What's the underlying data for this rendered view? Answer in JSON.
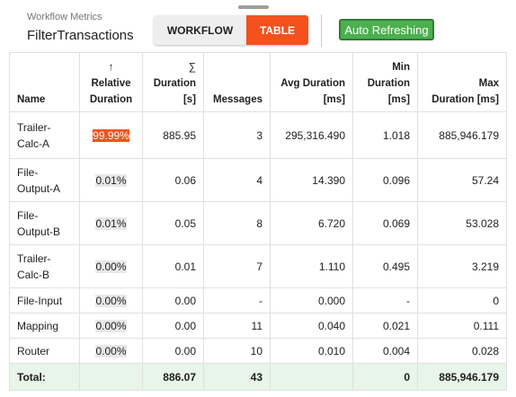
{
  "header": {
    "subtitle": "Workflow Metrics",
    "title": "FilterTransactions",
    "tabs": [
      {
        "label": "WORKFLOW",
        "active": false
      },
      {
        "label": "TABLE",
        "active": true
      }
    ],
    "refresh_button": "Auto Refreshing"
  },
  "table": {
    "columns": [
      {
        "label": "Name",
        "align": "left"
      },
      {
        "icon": "↑",
        "label": "Relative\nDuration",
        "align": "center"
      },
      {
        "icon": "∑",
        "label": "Duration\n[s]",
        "align": "right"
      },
      {
        "label": "Messages",
        "align": "right"
      },
      {
        "label": "Avg Duration\n[ms]",
        "align": "right"
      },
      {
        "label": "Min\nDuration\n[ms]",
        "align": "right"
      },
      {
        "label": "Max\nDuration [ms]",
        "align": "right"
      }
    ],
    "rows": [
      [
        "Trailer-\nCalc-A",
        "99.99%",
        "885.95",
        "3",
        "295,316.490",
        "1.018",
        "885,946.179"
      ],
      [
        "File-\nOutput-A",
        "0.01%",
        "0.06",
        "4",
        "14.390",
        "0.096",
        "57.24"
      ],
      [
        "File-\nOutput-B",
        "0.01%",
        "0.05",
        "8",
        "6.720",
        "0.069",
        "53.028"
      ],
      [
        "Trailer-\nCalc-B",
        "0.00%",
        "0.01",
        "7",
        "1.110",
        "0.495",
        "3.219"
      ],
      [
        "File-Input",
        "0.00%",
        "0.00",
        "-",
        "0.000",
        "-",
        "0"
      ],
      [
        "Mapping",
        "0.00%",
        "0.00",
        "11",
        "0.040",
        "0.021",
        "0.111"
      ],
      [
        "Router",
        "0.00%",
        "0.00",
        "10",
        "0.010",
        "0.004",
        "0.028"
      ]
    ],
    "badge_colors": [
      "#f4511e",
      "#e8e8e8",
      "#e8e8e8",
      "#e8e8e8",
      "#e8e8e8",
      "#e8e8e8",
      "#e8e8e8"
    ],
    "total": [
      "Total:",
      null,
      "886.07",
      "43",
      null,
      "0",
      "885,946.179"
    ]
  }
}
